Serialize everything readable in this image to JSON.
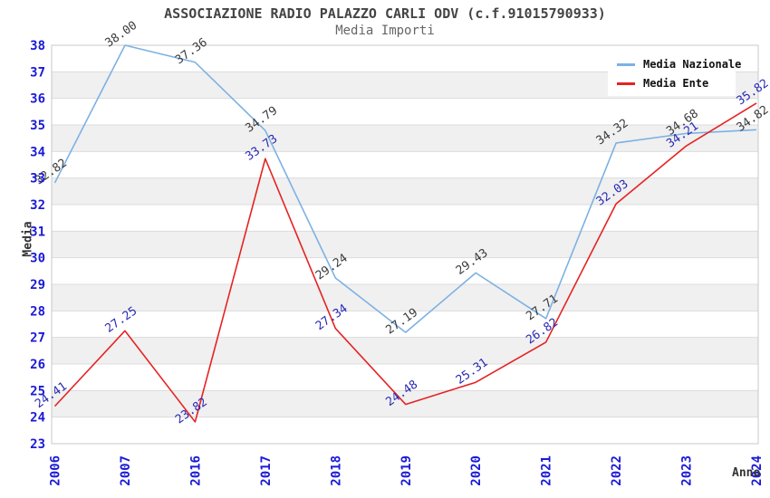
{
  "chart_data": {
    "type": "line",
    "title": "ASSOCIAZIONE RADIO PALAZZO CARLI ODV (c.f.91015790933)",
    "subtitle": "Media Importi",
    "xlabel": "Anno",
    "ylabel": "Media",
    "x_categories": [
      "2006",
      "2007",
      "2016",
      "2017",
      "2018",
      "2019",
      "2020",
      "2021",
      "2022",
      "2023",
      "2024"
    ],
    "series": [
      {
        "name": "Media Nazionale",
        "color": "#7cb1e3",
        "label_color": "#3a3a3a",
        "values": [
          32.82,
          38.0,
          37.36,
          34.79,
          29.24,
          27.19,
          29.43,
          27.71,
          34.32,
          34.68,
          34.82
        ]
      },
      {
        "name": "Media Ente",
        "color": "#e62222",
        "label_color": "#2828b4",
        "values": [
          24.41,
          27.25,
          23.82,
          33.73,
          27.34,
          24.48,
          25.31,
          26.82,
          32.03,
          34.21,
          35.82
        ]
      }
    ],
    "ylim": [
      23,
      38
    ],
    "y_tick_step": 1,
    "grid": true,
    "legend_position": "top-right",
    "tick_label_color": "#1a1ad6",
    "band_colors": [
      "#ffffff",
      "#f0f0f0"
    ],
    "gridline_color": "#dcdcdc",
    "border_color": "#c8c8c8"
  }
}
